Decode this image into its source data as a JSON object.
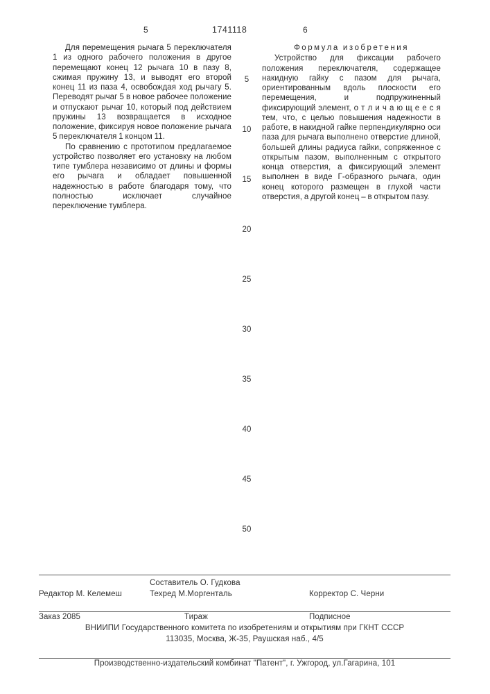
{
  "header": {
    "left_col_num": "5",
    "right_col_num": "6",
    "patent_number": "1741118"
  },
  "left_column": {
    "para1": "Для перемещения рычага 5 переключателя 1 из одного рабочего положения в другое перемещают конец 12 рычага 10 в пазу 8, сжимая пружину 13, и выводят его второй конец 11 из паза 4, освобождая ход рычагу 5. Переводят рычаг 5 в новое рабочее положение и отпускают рычаг 10, который под действием пружины 13 возвращается в исходное положение, фиксируя новое положение рычага 5 переключателя 1 концом 11.",
    "para2": "По сравнению с прототипом предлагаемое устройство позволяет его установку на любом типе тумблера независимо от длины и формы его рычага и обладает повышенной надежностью в работе благодаря тому, что полностью исключает случайное переключение тумблера."
  },
  "right_column": {
    "title": "Формула изобретения",
    "para1": "Устройство для фиксации рабочего положения переключателя, содержащее накидную гайку с пазом для рычага, ориентированным вдоль плоскости его перемещения, и подпружиненный фиксирующий элемент, о т л и ч а ю щ е е с я тем, что, с целью повышения надежности в работе, в накидной гайке перпендикулярно оси паза для рычага выполнено отверстие длиной, большей длины радиуса гайки, сопряженное с открытым пазом, выполненным с открытого конца отверстия, а фиксирующий элемент выполнен в виде Г-образного рычага, один конец которого размещен в глухой части отверстия, а другой конец – в открытом пазу."
  },
  "line_numbers": [
    "5",
    "10",
    "15",
    "20",
    "25",
    "30",
    "35",
    "40",
    "45",
    "50"
  ],
  "credits": {
    "editor": "Редактор М. Келемеш",
    "composer": "Составитель О. Гудкова",
    "techred": "Техред М.Моргенталь",
    "corrector": "Корректор  С. Черни",
    "order": "Заказ  2085",
    "print_run": "Тираж",
    "subscription": "Подписное",
    "org1": "ВНИИПИ Государственного комитета по изобретениям и открытиям при ГКНТ СССР",
    "org_addr": "113035, Москва, Ж-35, Раушская наб., 4/5",
    "printer": "Производственно-издательский комбинат \"Патент\", г. Ужгород, ул.Гагарина, 101"
  }
}
